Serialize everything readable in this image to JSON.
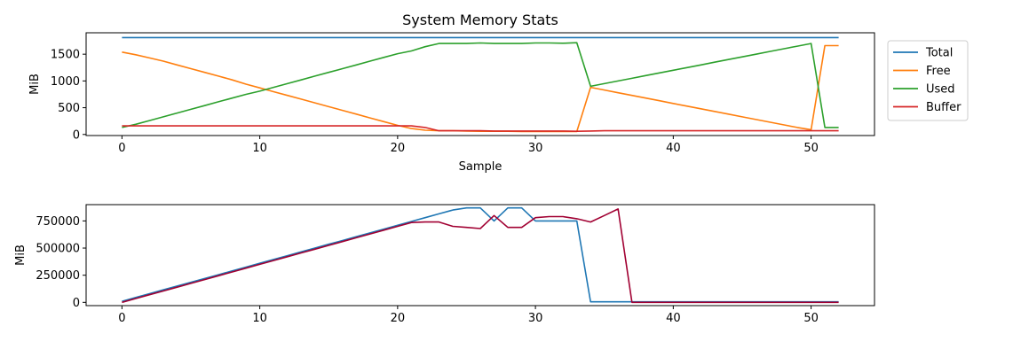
{
  "chart_data": [
    {
      "type": "line",
      "title": "System Memory Stats",
      "xlabel": "Sample",
      "ylabel": "MiB",
      "xlim": [
        -2.6,
        54.6
      ],
      "ylim": [
        -20,
        1900
      ],
      "xticks": [
        0,
        10,
        20,
        30,
        40,
        50
      ],
      "yticks": [
        0,
        500,
        1000,
        1500
      ],
      "legend_position": "outside-top-right",
      "x": [
        0,
        1,
        2,
        3,
        4,
        5,
        6,
        7,
        8,
        9,
        10,
        11,
        12,
        13,
        14,
        15,
        16,
        17,
        18,
        19,
        20,
        21,
        22,
        23,
        24,
        25,
        26,
        27,
        28,
        29,
        30,
        31,
        32,
        33,
        34,
        35,
        36,
        37,
        38,
        39,
        40,
        41,
        42,
        43,
        44,
        45,
        46,
        47,
        48,
        49,
        50,
        51,
        52
      ],
      "series": [
        {
          "name": "Total",
          "color": "#1f77b4",
          "values": [
            1810,
            1810,
            1810,
            1810,
            1810,
            1810,
            1810,
            1810,
            1810,
            1810,
            1810,
            1810,
            1810,
            1810,
            1810,
            1810,
            1810,
            1810,
            1810,
            1810,
            1810,
            1810,
            1810,
            1810,
            1810,
            1810,
            1810,
            1810,
            1810,
            1810,
            1810,
            1810,
            1810,
            1810,
            1810,
            1810,
            1810,
            1810,
            1810,
            1810,
            1810,
            1810,
            1810,
            1810,
            1810,
            1810,
            1810,
            1810,
            1810,
            1810,
            1810,
            1810,
            1810
          ]
        },
        {
          "name": "Free",
          "color": "#ff7f0e",
          "values": [
            1540,
            1490,
            1430,
            1370,
            1300,
            1230,
            1160,
            1090,
            1020,
            940,
            870,
            800,
            730,
            660,
            590,
            520,
            450,
            380,
            310,
            240,
            170,
            110,
            80,
            70,
            70,
            65,
            60,
            60,
            60,
            55,
            55,
            55,
            55,
            55,
            880,
            830,
            780,
            730,
            680,
            630,
            580,
            530,
            480,
            430,
            380,
            330,
            280,
            230,
            180,
            130,
            90,
            1660,
            1660
          ]
        },
        {
          "name": "Used",
          "color": "#2ca02c",
          "values": [
            130,
            190,
            260,
            330,
            400,
            470,
            540,
            610,
            680,
            750,
            810,
            880,
            950,
            1020,
            1090,
            1160,
            1230,
            1300,
            1370,
            1440,
            1510,
            1560,
            1640,
            1700,
            1700,
            1700,
            1710,
            1700,
            1700,
            1700,
            1710,
            1710,
            1705,
            1715,
            900,
            950,
            1000,
            1050,
            1100,
            1150,
            1200,
            1250,
            1300,
            1350,
            1400,
            1450,
            1500,
            1550,
            1600,
            1650,
            1700,
            130,
            130
          ]
        },
        {
          "name": "Buffer",
          "color": "#d62728",
          "values": [
            160,
            160,
            160,
            160,
            160,
            160,
            160,
            160,
            160,
            160,
            160,
            160,
            160,
            160,
            160,
            160,
            160,
            160,
            160,
            160,
            160,
            160,
            130,
            70,
            70,
            70,
            70,
            65,
            65,
            65,
            65,
            65,
            65,
            60,
            65,
            70,
            70,
            70,
            70,
            70,
            70,
            70,
            70,
            70,
            70,
            70,
            70,
            70,
            70,
            70,
            70,
            70,
            70
          ]
        }
      ]
    },
    {
      "type": "line",
      "title": "",
      "xlabel": "",
      "ylabel": "MiB",
      "xlim": [
        -2.6,
        54.6
      ],
      "ylim": [
        -30000,
        900000
      ],
      "xticks": [
        0,
        10,
        20,
        30,
        40,
        50
      ],
      "yticks": [
        0,
        250000,
        500000,
        750000
      ],
      "x": [
        0,
        1,
        2,
        3,
        4,
        5,
        6,
        7,
        8,
        9,
        10,
        11,
        12,
        13,
        14,
        15,
        16,
        17,
        18,
        19,
        20,
        21,
        22,
        23,
        24,
        25,
        26,
        27,
        28,
        29,
        30,
        31,
        32,
        33,
        34,
        35,
        36,
        37,
        38,
        39,
        40,
        41,
        42,
        43,
        44,
        45,
        46,
        47,
        48,
        49,
        50,
        51,
        52
      ],
      "series": [
        {
          "color": "#1f77b4",
          "values": [
            10000,
            45000,
            80000,
            115000,
            150000,
            185000,
            220000,
            255000,
            290000,
            325000,
            360000,
            395000,
            430000,
            465000,
            500000,
            535000,
            570000,
            605000,
            640000,
            675000,
            710000,
            745000,
            780000,
            815000,
            850000,
            870000,
            870000,
            750000,
            870000,
            870000,
            750000,
            750000,
            750000,
            750000,
            5000,
            5000,
            5000,
            5000,
            5000,
            5000,
            5000,
            5000,
            5000,
            5000,
            5000,
            5000,
            5000,
            5000,
            5000,
            5000,
            5000,
            5000,
            5000
          ]
        },
        {
          "color": "#a10032",
          "values": [
            0,
            35000,
            70000,
            105000,
            140000,
            175000,
            210000,
            245000,
            280000,
            315000,
            350000,
            385000,
            420000,
            455000,
            490000,
            525000,
            560000,
            595000,
            630000,
            665000,
            700000,
            735000,
            740000,
            740000,
            700000,
            690000,
            680000,
            800000,
            690000,
            690000,
            780000,
            790000,
            790000,
            770000,
            740000,
            800000,
            860000,
            0,
            0,
            0,
            0,
            0,
            0,
            0,
            0,
            0,
            0,
            0,
            0,
            0,
            0,
            0,
            0
          ]
        }
      ]
    }
  ]
}
